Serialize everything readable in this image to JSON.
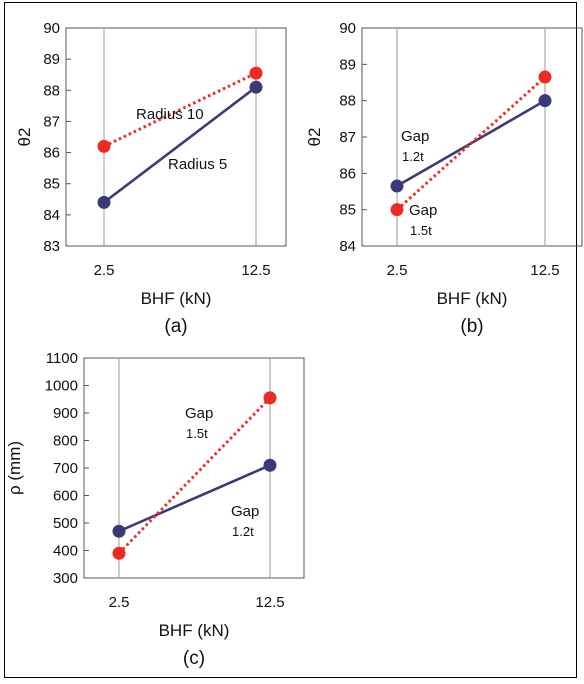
{
  "colors": {
    "navy": "#3a3a78",
    "red": "#ee2a24",
    "vline": "#9a9a9a",
    "axis": "#555555"
  },
  "chart_data": [
    {
      "type": "line",
      "caption": "(a)",
      "xlabel": "BHF (kN)",
      "ylabel": "θ2",
      "categories": [
        "2.5",
        "12.5"
      ],
      "ylim": [
        83,
        90
      ],
      "yticks": [
        "83",
        "84",
        "85",
        "86",
        "87",
        "88",
        "89",
        "90"
      ],
      "series": [
        {
          "name": "Radius 10",
          "style": "dotted",
          "color": "#ee2a24",
          "values": [
            86.2,
            88.55
          ]
        },
        {
          "name": "Radius 5",
          "style": "solid",
          "color": "#3a3a78",
          "values": [
            84.4,
            88.1
          ]
        }
      ],
      "annotations": [
        {
          "lines": [
            "Radius 10"
          ]
        },
        {
          "lines": [
            "Radius 5"
          ]
        }
      ]
    },
    {
      "type": "line",
      "caption": "(b)",
      "xlabel": "BHF (kN)",
      "ylabel": "θ2",
      "categories": [
        "2.5",
        "12.5"
      ],
      "ylim": [
        84,
        90
      ],
      "yticks": [
        "84",
        "85",
        "86",
        "87",
        "88",
        "89",
        "90"
      ],
      "series": [
        {
          "name": "Gap 1.2t",
          "style": "solid",
          "color": "#3a3a78",
          "values": [
            85.65,
            88.0
          ]
        },
        {
          "name": "Gap 1.5t",
          "style": "dotted",
          "color": "#ee2a24",
          "values": [
            85.0,
            88.65
          ]
        }
      ],
      "annotations": [
        {
          "lines": [
            "Gap",
            "1.2t"
          ]
        },
        {
          "lines": [
            "Gap",
            "1.5t"
          ]
        }
      ]
    },
    {
      "type": "line",
      "caption": "(c)",
      "xlabel": "BHF (kN)",
      "ylabel": "ρ (mm)",
      "categories": [
        "2.5",
        "12.5"
      ],
      "ylim": [
        300,
        1100
      ],
      "yticks": [
        "300",
        "400",
        "500",
        "600",
        "700",
        "800",
        "900",
        "1000",
        "1100"
      ],
      "series": [
        {
          "name": "Gap 1.2t",
          "style": "solid",
          "color": "#3a3a78",
          "values": [
            470,
            710
          ]
        },
        {
          "name": "Gap 1.5t",
          "style": "dotted",
          "color": "#ee2a24",
          "values": [
            390,
            955
          ]
        }
      ],
      "annotations": [
        {
          "lines": [
            "Gap",
            "1.5t"
          ]
        },
        {
          "lines": [
            "Gap",
            "1.2t"
          ]
        }
      ]
    }
  ]
}
